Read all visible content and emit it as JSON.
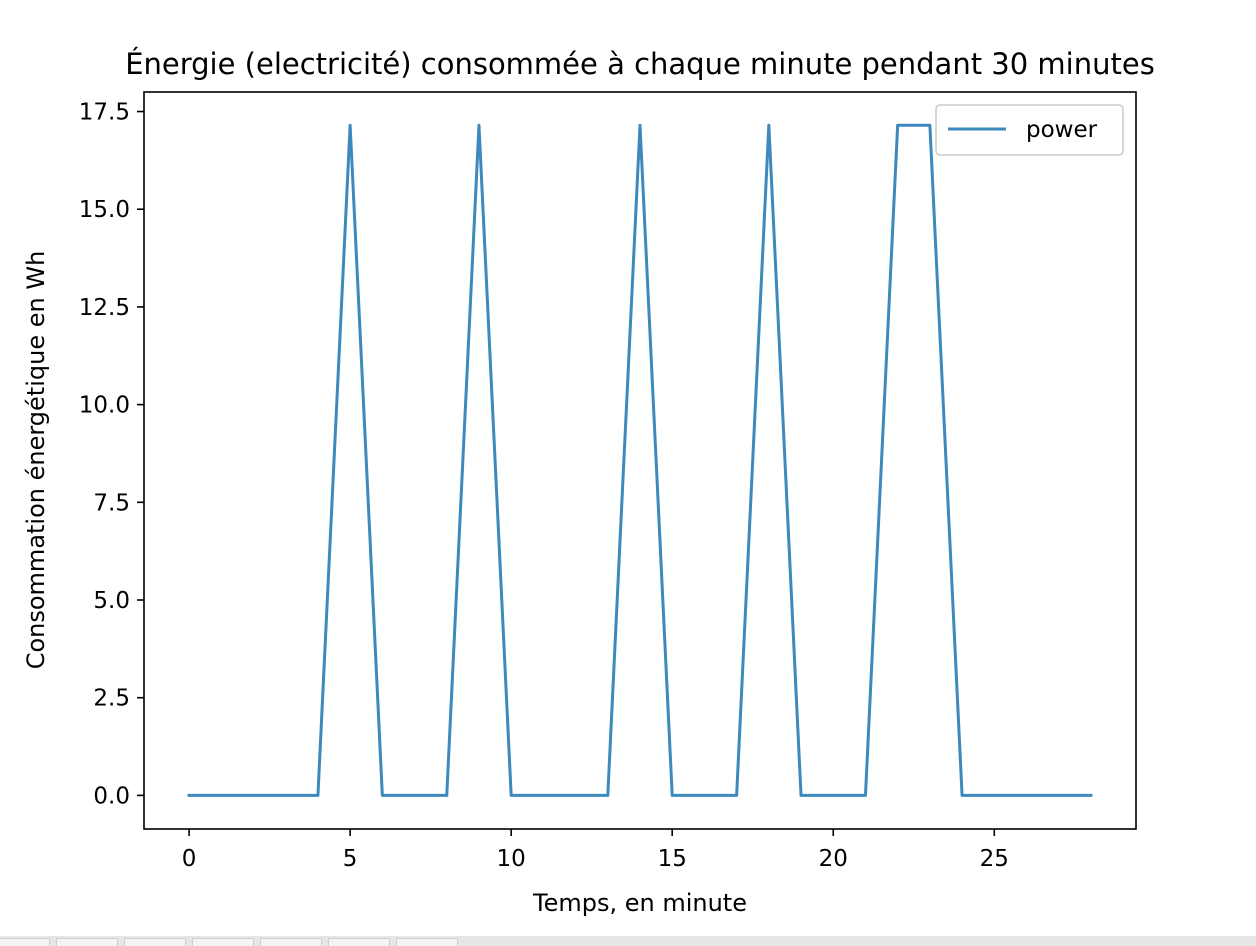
{
  "chart_data": {
    "type": "line",
    "title": "Énergie (electricité) consommée à chaque minute pendant 30 minutes",
    "xlabel": "Temps, en minute",
    "ylabel": "Consommation énergétique en Wh",
    "xlim": [
      -1.4,
      29.4
    ],
    "ylim": [
      -0.86,
      18.0
    ],
    "xticks": [
      0,
      5,
      10,
      15,
      20,
      25
    ],
    "xtick_labels": [
      "0",
      "5",
      "10",
      "15",
      "20",
      "25"
    ],
    "yticks": [
      0,
      2.5,
      5,
      7.5,
      10,
      12.5,
      15,
      17.5
    ],
    "ytick_labels": [
      "0.0",
      "2.5",
      "5.0",
      "7.5",
      "10.0",
      "12.5",
      "15.0",
      "17.5"
    ],
    "grid": false,
    "legend_position": "upper right",
    "series": [
      {
        "name": "power",
        "color": "#3d89be",
        "x": [
          0,
          1,
          2,
          3,
          4,
          5,
          6,
          7,
          8,
          9,
          10,
          11,
          12,
          13,
          14,
          15,
          16,
          17,
          18,
          19,
          20,
          21,
          22,
          23,
          24,
          25,
          26,
          27,
          28
        ],
        "values": [
          0,
          0,
          0,
          0,
          0,
          17.15,
          0,
          0,
          0,
          17.15,
          0,
          0,
          0,
          0,
          17.15,
          0,
          0,
          0,
          17.15,
          0,
          0,
          0,
          17.15,
          17.15,
          0,
          0,
          0,
          0,
          0
        ]
      }
    ]
  }
}
